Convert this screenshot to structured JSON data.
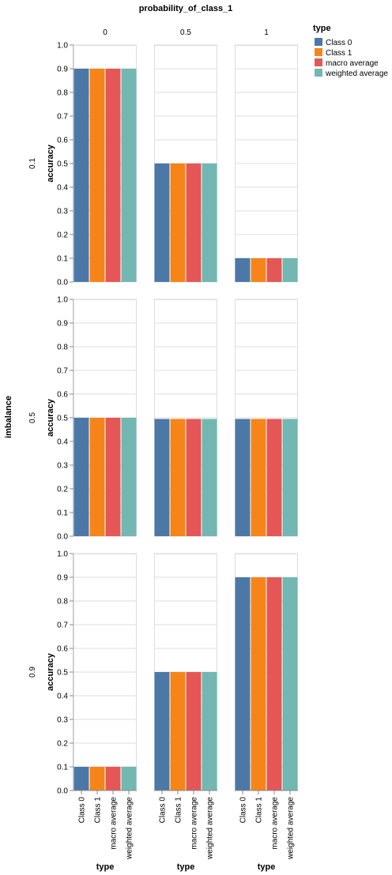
{
  "chart_data": {
    "type": "bar",
    "column_facet_title": "probability_of_class_1",
    "row_facet_title": "imbalance",
    "column_values": [
      "0",
      "0.5",
      "1"
    ],
    "row_values": [
      "0.1",
      "0.5",
      "0.9"
    ],
    "categories": [
      "Class 0",
      "Class 1",
      "macro average",
      "weighted average"
    ],
    "xlabel": "type",
    "ylabel": "accuracy",
    "ylim": [
      0,
      1
    ],
    "yticks": [
      "0.0",
      "0.1",
      "0.2",
      "0.3",
      "0.4",
      "0.5",
      "0.6",
      "0.7",
      "0.8",
      "0.9",
      "1.0"
    ],
    "grid": true,
    "legend": {
      "title": "type",
      "placement": "top-right",
      "entries": [
        "Class 0",
        "Class 1",
        "macro average",
        "weighted average"
      ]
    },
    "colors": [
      "#4c78a8",
      "#f58518",
      "#e45756",
      "#72b7b2"
    ],
    "panels": [
      {
        "row": "0.1",
        "column": "0",
        "values": [
          0.9,
          0.9,
          0.9,
          0.9
        ]
      },
      {
        "row": "0.1",
        "column": "0.5",
        "values": [
          0.5,
          0.5,
          0.5,
          0.5
        ]
      },
      {
        "row": "0.1",
        "column": "1",
        "values": [
          0.1,
          0.1,
          0.1,
          0.1
        ]
      },
      {
        "row": "0.5",
        "column": "0",
        "values": [
          0.5,
          0.5,
          0.5,
          0.5
        ]
      },
      {
        "row": "0.5",
        "column": "0.5",
        "values": [
          0.495,
          0.495,
          0.495,
          0.495
        ]
      },
      {
        "row": "0.5",
        "column": "1",
        "values": [
          0.495,
          0.495,
          0.495,
          0.495
        ]
      },
      {
        "row": "0.9",
        "column": "0",
        "values": [
          0.1,
          0.1,
          0.1,
          0.1
        ]
      },
      {
        "row": "0.9",
        "column": "0.5",
        "values": [
          0.5,
          0.5,
          0.5,
          0.5
        ]
      },
      {
        "row": "0.9",
        "column": "1",
        "values": [
          0.9,
          0.9,
          0.9,
          0.9
        ]
      }
    ]
  }
}
